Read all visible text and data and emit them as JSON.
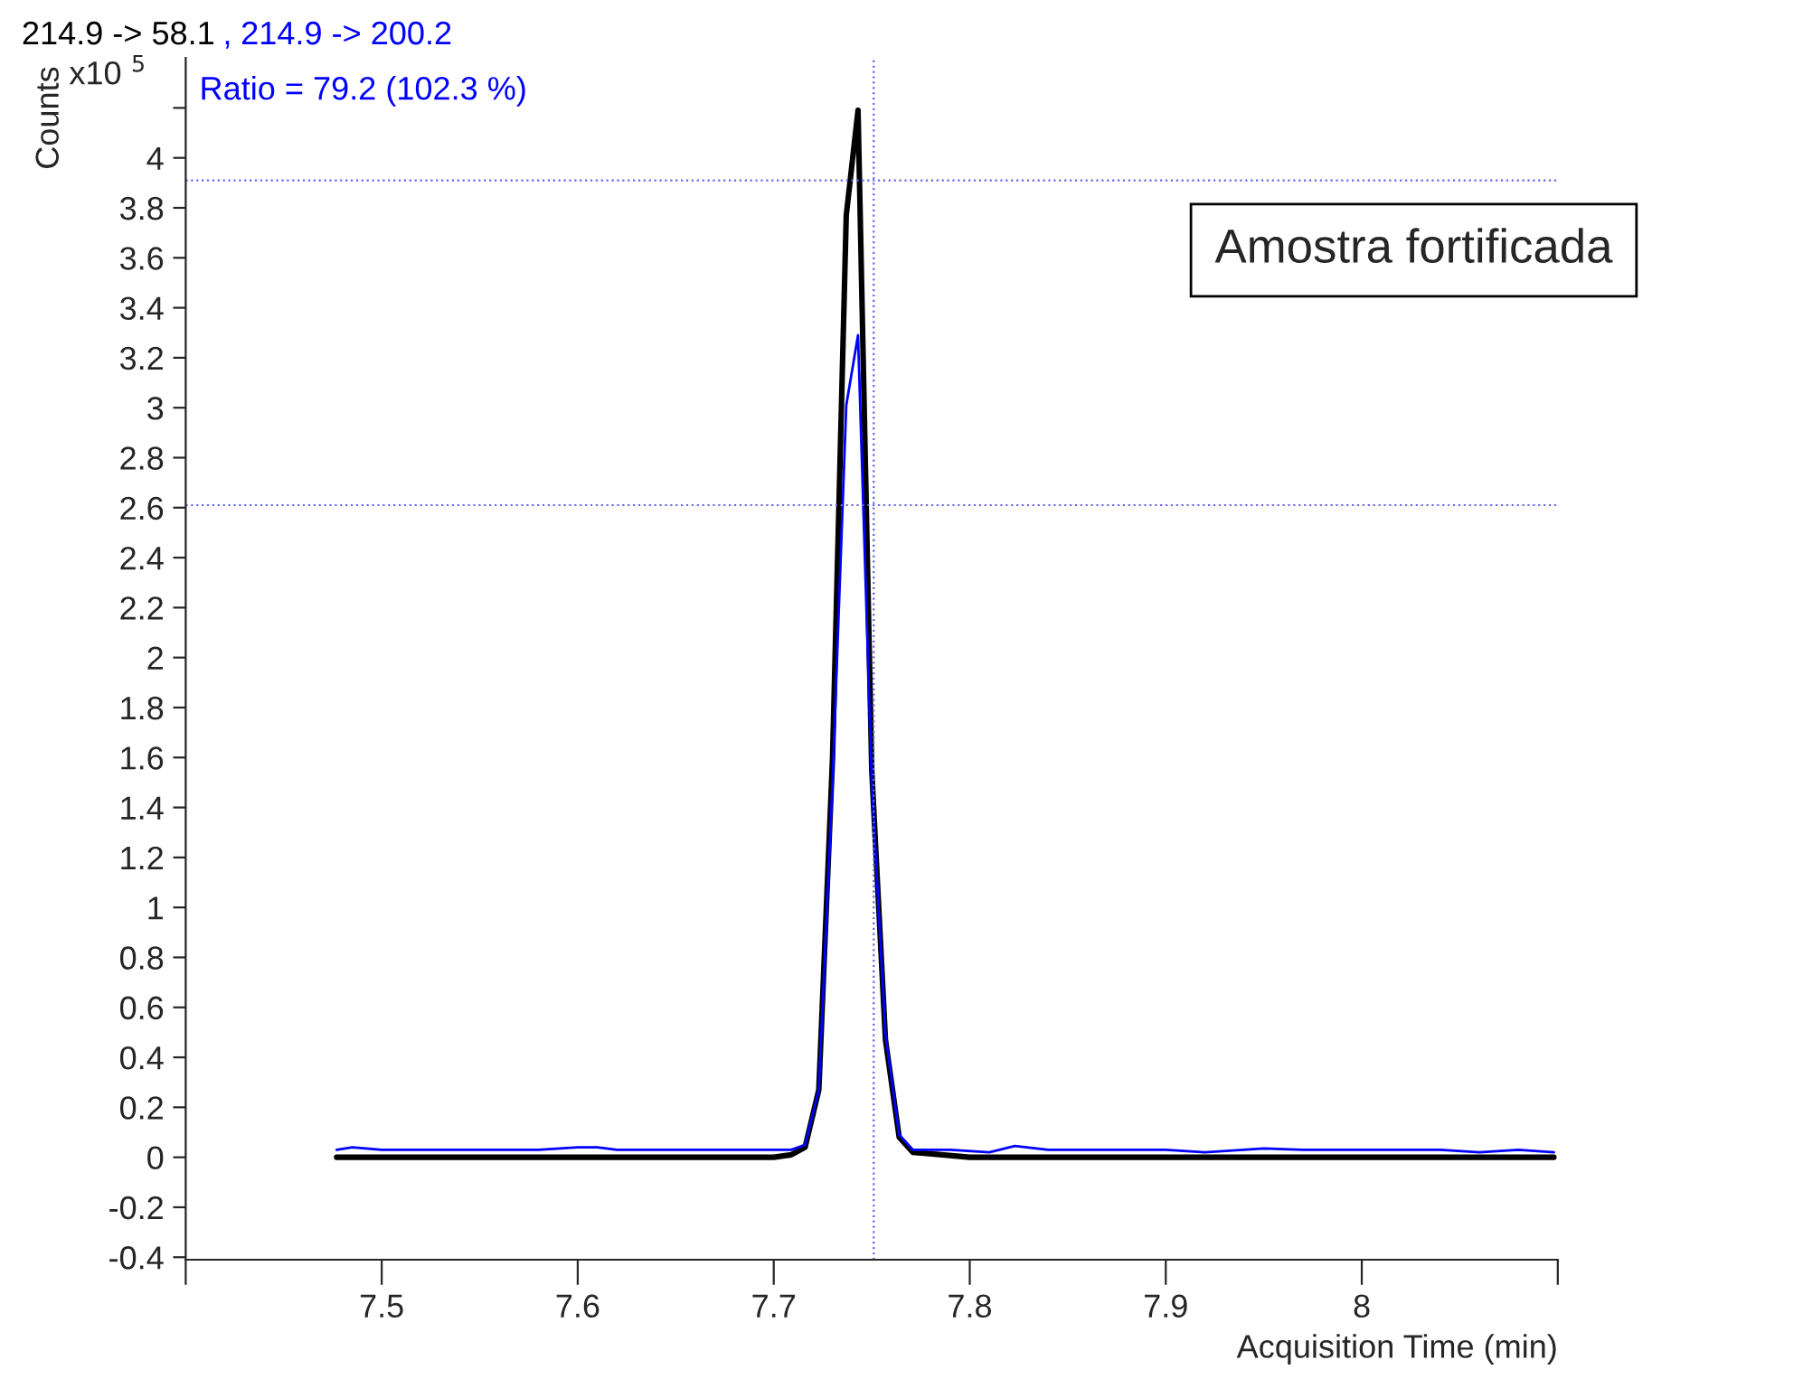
{
  "chart_data": {
    "type": "line",
    "ylabel": "Counts",
    "xlabel": "Acquisition Time (min)",
    "annotations": [
      "x10 $^{5}$",
      "Ratio = 79.2 (102.3 %)",
      "Amostra fortificada",
      ","
    ],
    "xlim": [
      7.4,
      8.1
    ],
    "ylim": [
      -0.41,
      4.4
    ],
    "xticks": [
      {
        "value": 7.4,
        "label": null
      },
      7.5,
      7.6,
      7.7,
      7.8,
      7.9,
      8,
      {
        "value": 8.1,
        "label": null
      }
    ],
    "yticks": [
      -0.4,
      -0.2,
      0,
      0.2,
      0.4,
      0.6,
      0.8,
      1,
      1.2,
      1.4,
      1.6,
      1.8,
      2,
      2.2,
      2.4,
      2.6,
      2.8,
      3,
      3.2,
      3.4,
      3.6,
      3.8,
      4,
      {
        "value": 4.2,
        "label": null
      }
    ],
    "grid": false,
    "ref_lines": [
      {
        "axis": "y",
        "value": 3.91,
        "color": "#6666ee",
        "line_style": "dotted"
      },
      {
        "axis": "y",
        "value": 2.61,
        "color": "#6666ee",
        "line_style": "dotted"
      },
      {
        "axis": "x",
        "value": 7.751,
        "color": "#6666ee",
        "line_style": "dotted"
      }
    ],
    "series": [
      {
        "name": "214.9 -> 58.1",
        "color": "#000000",
        "x": [
          7.477,
          7.5,
          7.55,
          7.6,
          7.65,
          7.7,
          7.709,
          7.716,
          7.723,
          7.73,
          7.737,
          7.743,
          7.75,
          7.757,
          7.764,
          7.771,
          7.8,
          7.85,
          7.9,
          7.95,
          8.0,
          8.05,
          8.098
        ],
        "values": [
          0.0,
          0.0,
          0.0,
          0.0,
          0.0,
          0.0,
          0.01,
          0.04,
          0.27,
          1.6,
          3.77,
          4.19,
          1.55,
          0.47,
          0.08,
          0.02,
          0.0,
          0.0,
          0.0,
          0.0,
          0.0,
          0.0,
          0.0
        ]
      },
      {
        "name": "214.9 -> 200.2",
        "color": "#0000ff",
        "x": [
          7.477,
          7.485,
          7.5,
          7.52,
          7.54,
          7.56,
          7.58,
          7.6,
          7.61,
          7.62,
          7.64,
          7.66,
          7.68,
          7.7,
          7.709,
          7.716,
          7.723,
          7.73,
          7.737,
          7.743,
          7.75,
          7.757,
          7.764,
          7.771,
          7.79,
          7.81,
          7.823,
          7.84,
          7.86,
          7.88,
          7.9,
          7.92,
          7.95,
          7.97,
          8.0,
          8.02,
          8.04,
          8.06,
          8.08,
          8.098
        ],
        "values": [
          0.03,
          0.04,
          0.03,
          0.03,
          0.03,
          0.03,
          0.03,
          0.04,
          0.04,
          0.03,
          0.03,
          0.03,
          0.03,
          0.03,
          0.03,
          0.05,
          0.27,
          1.5,
          3.01,
          3.29,
          1.5,
          0.49,
          0.09,
          0.03,
          0.03,
          0.02,
          0.045,
          0.03,
          0.03,
          0.03,
          0.03,
          0.02,
          0.035,
          0.03,
          0.03,
          0.03,
          0.03,
          0.02,
          0.03,
          0.02
        ]
      }
    ]
  }
}
